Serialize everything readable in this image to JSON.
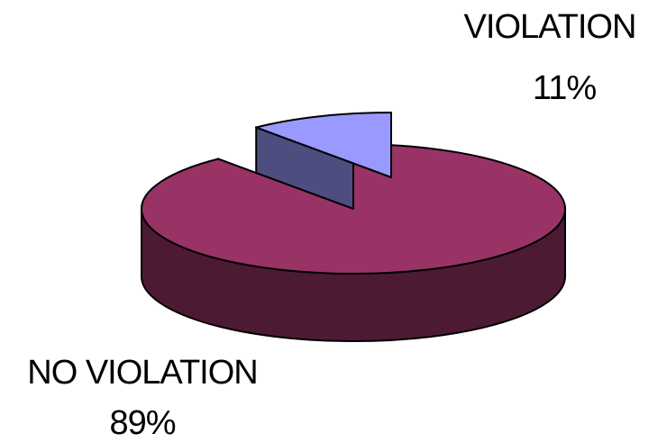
{
  "chart_data": {
    "type": "pie",
    "style": "3d-exploded",
    "title": "",
    "slices": [
      {
        "label": "NO VIOLATION",
        "value": 89,
        "display": "89%",
        "color": "#993366",
        "side_color": "#4d1a33"
      },
      {
        "label": "VIOLATION",
        "value": 11,
        "display": "11%",
        "color": "#9999ff",
        "side_color": "#4d4d80"
      }
    ],
    "legend": "none"
  }
}
